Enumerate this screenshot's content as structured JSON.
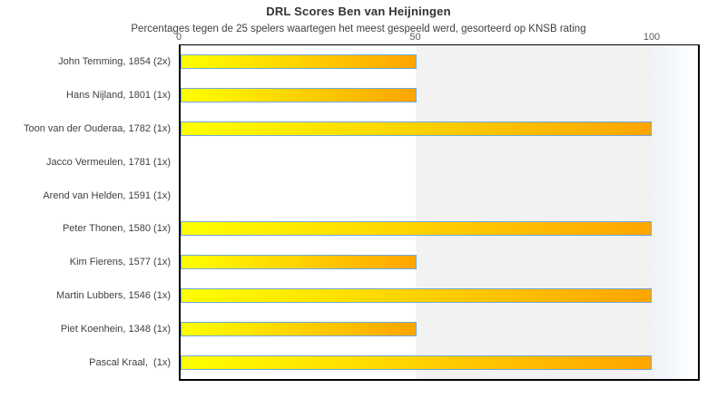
{
  "chart_data": {
    "type": "bar",
    "orientation": "horizontal",
    "title": "DRL Scores Ben van Heijningen",
    "subtitle": "Percentages tegen de 25 spelers waartegen het meest gespeeld werd, gesorteerd op KNSB rating",
    "categories": [
      "John Temming, 1854 (2x)",
      "Hans Nijland, 1801 (1x)",
      "Toon van der Ouderaa, 1782 (1x)",
      "Jacco Vermeulen, 1781 (1x)",
      "Arend van Helden, 1591 (1x)",
      "Peter Thonen, 1580 (1x)",
      "Kim Fierens, 1577 (1x)",
      "Martin Lubbers, 1546 (1x)",
      "Piet Koenhein, 1348 (1x)",
      "Pascal Kraal,  (1x)"
    ],
    "values": [
      50,
      50,
      100,
      0,
      0,
      100,
      50,
      100,
      50,
      100
    ],
    "xlabel": "",
    "ylabel": "",
    "xlim": [
      0,
      100
    ],
    "xticks": [
      "0",
      "50",
      "100"
    ],
    "grid": false,
    "legend": false,
    "colors": {
      "bar_gradient_start": "#ffff00",
      "bar_gradient_end": "#ffa500",
      "bar_border": "#6fa8dc",
      "band_0_50": "#ffffff",
      "band_50_100": "#f2f2f2",
      "band_over_100": "#eef4fa",
      "plot_border": "#000000",
      "title_text": "#333333",
      "subtitle_text": "#404040",
      "label_text": "#404040",
      "tick_text": "#5a5a5a"
    }
  }
}
